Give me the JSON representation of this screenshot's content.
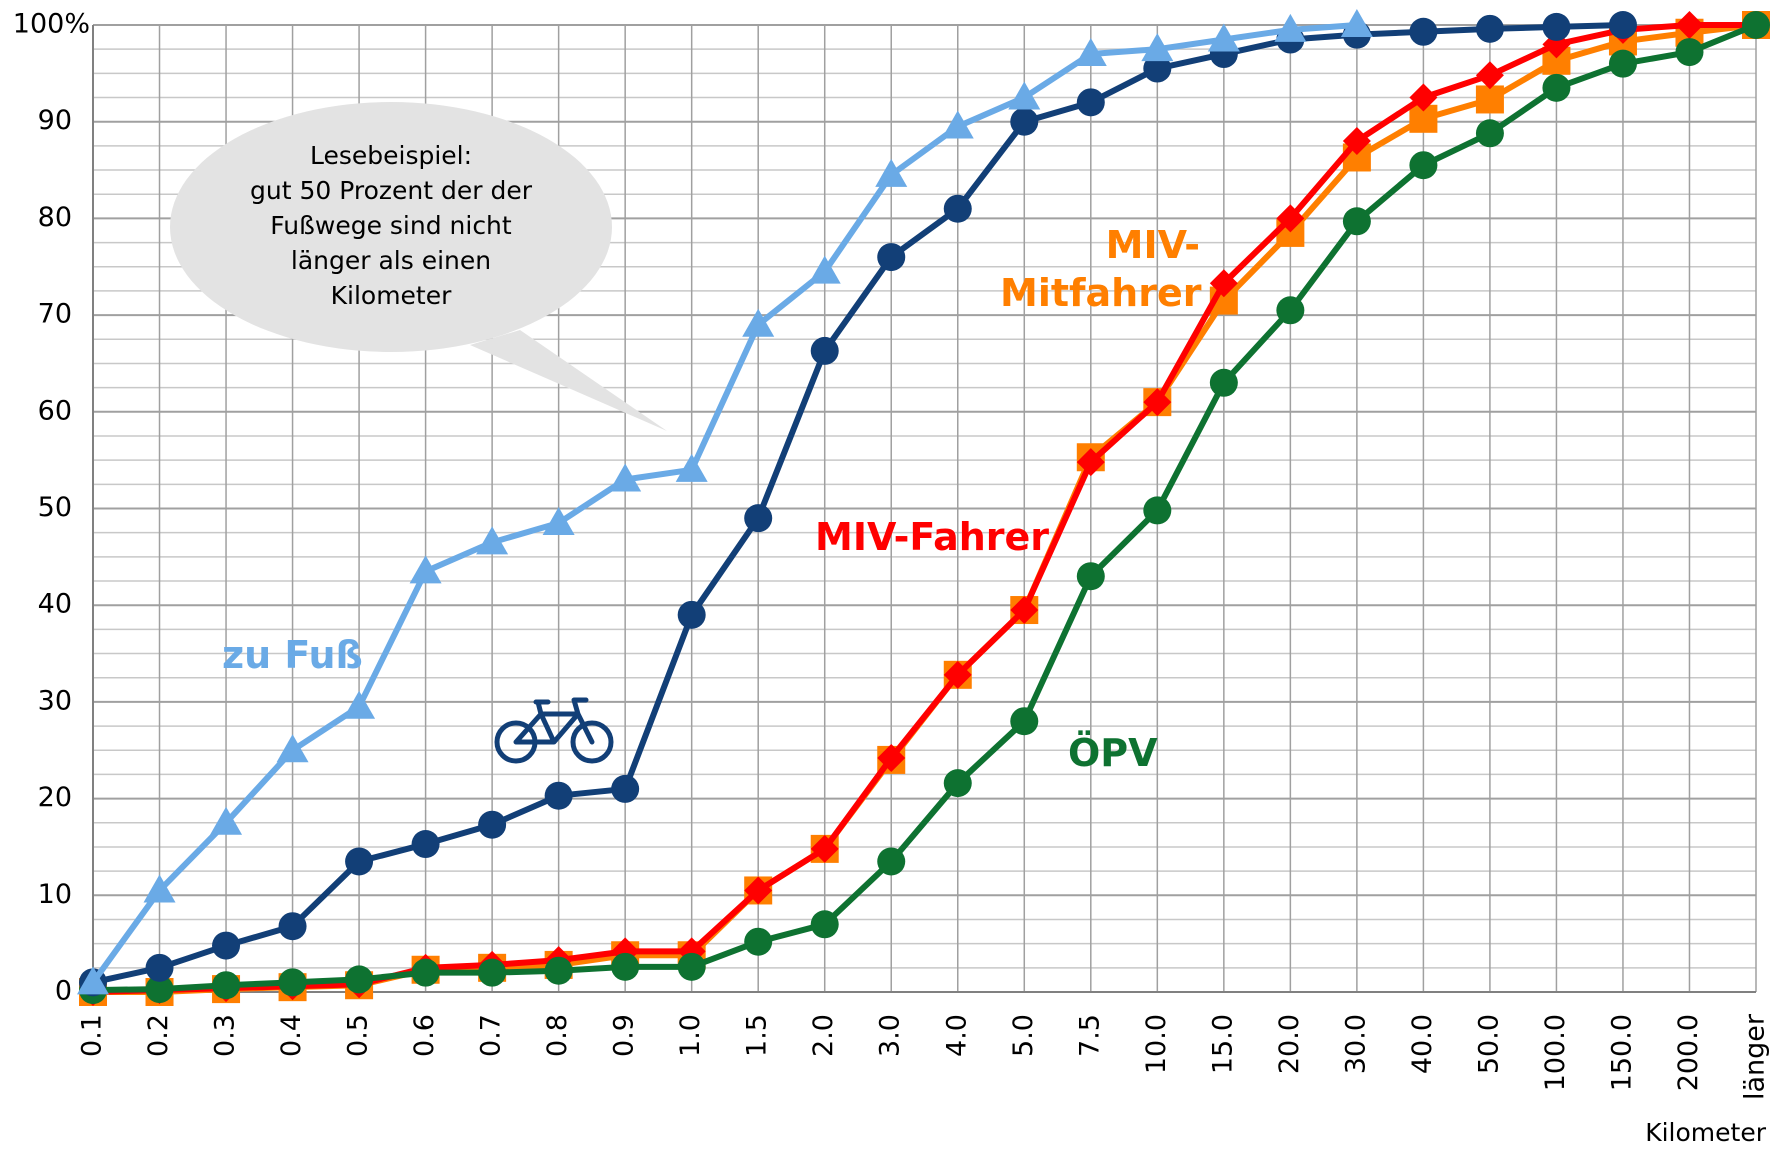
{
  "chart_data": {
    "type": "line",
    "categories": [
      "0.1",
      "0.2",
      "0.3",
      "0.4",
      "0.5",
      "0.6",
      "0.7",
      "0.8",
      "0.9",
      "1.0",
      "1.5",
      "2.0",
      "3.0",
      "4.0",
      "5.0",
      "7.5",
      "10.0",
      "15.0",
      "20.0",
      "30.0",
      "40.0",
      "50.0",
      "100.0",
      "150.0",
      "200.0",
      "länger"
    ],
    "x_label": "Kilometer",
    "ylim": [
      0,
      100
    ],
    "yticks": [
      0,
      10,
      20,
      30,
      40,
      50,
      60,
      70,
      80,
      90,
      {
        "value": 100,
        "label": "100%"
      }
    ],
    "yminor": [
      2.5,
      5,
      7.5,
      12.5,
      15,
      17.5,
      22.5,
      25,
      27.5,
      32.5,
      35,
      37.5,
      42.5,
      45,
      47.5,
      52.5,
      55,
      57.5,
      62.5,
      65,
      67.5,
      72.5,
      75,
      77.5,
      82.5,
      85,
      87.5,
      92.5,
      95,
      97.5
    ],
    "grid": true,
    "annotation": {
      "lines": [
        "Lesebeispiel:",
        "gut 50 Prozent der der",
        "Fußwege sind nicht",
        "länger als einen",
        "Kilometer"
      ]
    },
    "series": [
      {
        "name": "MIV-Mitfahrer",
        "color": "#ff7f00",
        "marker": "square",
        "values": [
          0,
          0,
          0.3,
          0.5,
          0.7,
          2.3,
          2.5,
          2.8,
          3.8,
          3.8,
          10.5,
          14.8,
          24,
          32.8,
          39.5,
          55.3,
          61,
          71.5,
          78.5,
          86.3,
          90.3,
          92.3,
          96.3,
          98.3,
          99.2,
          100
        ]
      },
      {
        "name": "MIV-Fahrer",
        "color": "#ff0000",
        "marker": "diamond",
        "values": [
          0,
          0.2,
          0.4,
          0.6,
          0.8,
          2.5,
          2.8,
          3.3,
          4.2,
          4.2,
          10.5,
          14.8,
          24.2,
          32.8,
          39.5,
          54.8,
          61,
          73.3,
          80,
          88,
          92.5,
          94.8,
          98,
          99.5,
          100,
          100
        ]
      },
      {
        "name": "ÖPV",
        "color": "#0e7231",
        "marker": "circle",
        "values": [
          0.2,
          0.3,
          0.7,
          1,
          1.3,
          2,
          2,
          2.2,
          2.6,
          2.6,
          5.2,
          7,
          13.5,
          21.6,
          28,
          43,
          49.8,
          63,
          70.5,
          79.7,
          85.5,
          88.8,
          93.5,
          96,
          97.2,
          100
        ]
      },
      {
        "color": "#123f77",
        "marker": "circle",
        "values": [
          1,
          2.5,
          4.8,
          6.8,
          13.5,
          15.3,
          17.3,
          20.3,
          21,
          39,
          49,
          66.3,
          76,
          81,
          90,
          92,
          95.5,
          97,
          98.5,
          99,
          99.3,
          99.6,
          99.8,
          100,
          null,
          null
        ]
      },
      {
        "name": "zu Fuß",
        "color": "#6aaae6",
        "marker": "triangle",
        "values": [
          1,
          10.5,
          17.5,
          25,
          29.5,
          43.5,
          46.5,
          48.5,
          53,
          54,
          69,
          74.5,
          84.5,
          89.5,
          92.5,
          97,
          97.5,
          98.5,
          99.5,
          100,
          null,
          null,
          null,
          null,
          null,
          null
        ]
      }
    ]
  }
}
